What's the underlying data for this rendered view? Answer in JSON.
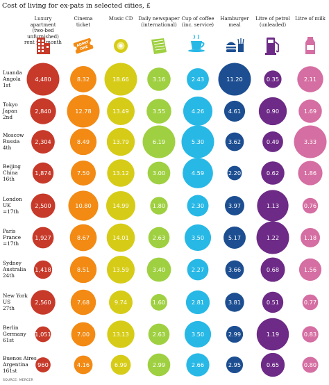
{
  "title": "Cost of living for ex-pats in selected cities, £",
  "source": "SOURCE: MERCER",
  "chart_data": {
    "type": "bubble",
    "title": "Cost of living for ex-pats in selected cities, £",
    "categories": [
      {
        "label": "Luxury apartment\n(two-bed unfurnished)\nrent per month",
        "color": "#c73a2a",
        "icon": "apartment-building-icon"
      },
      {
        "label": "Cinema\nticket",
        "color": "#f28a14",
        "icon": "admit-one-ticket-icon",
        "icon_text": "ADMIT\nONE"
      },
      {
        "label": "Music CD",
        "color": "#d6cc17",
        "icon": "compact-disc-icon"
      },
      {
        "label": "Daily newspaper\n(international)",
        "color": "#9fd041",
        "icon": "newspaper-icon"
      },
      {
        "label": "Cup of coffee\n(inc. service)",
        "color": "#27b8e6",
        "icon": "coffee-cup-icon"
      },
      {
        "label": "Hamburger\nmeal",
        "color": "#1c4e91",
        "icon": "hamburger-meal-icon"
      },
      {
        "label": "Litre of petrol\n(unleaded)",
        "color": "#6d2a86",
        "icon": "petrol-pump-icon"
      },
      {
        "label": "Litre of milk",
        "color": "#d56ea2",
        "icon": "milk-bottle-icon"
      }
    ],
    "cities": [
      {
        "label": "Luanda\nAngola\n1st",
        "values": [
          4480,
          8.32,
          18.66,
          3.16,
          2.43,
          11.2,
          0.35,
          2.11
        ],
        "display": [
          "4,480",
          "8.32",
          "18.66",
          "3.16",
          "2.43",
          "11.20",
          "0.35",
          "2.11"
        ]
      },
      {
        "label": "Tokyo\nJapan\n2nd",
        "values": [
          2840,
          12.78,
          13.49,
          3.55,
          4.26,
          4.61,
          0.9,
          1.69
        ],
        "display": [
          "2,840",
          "12.78",
          "13.49",
          "3.55",
          "4.26",
          "4.61",
          "0.90",
          "1.69"
        ]
      },
      {
        "label": "Moscow\nRussia\n4th",
        "values": [
          2304,
          8.49,
          13.79,
          6.19,
          5.3,
          3.62,
          0.49,
          3.33
        ],
        "display": [
          "2,304",
          "8.49",
          "13.79",
          "6.19",
          "5.30",
          "3.62",
          "0.49",
          "3.33"
        ]
      },
      {
        "label": "Beijing\nChina\n16th",
        "values": [
          1874,
          7.5,
          13.12,
          3.0,
          4.59,
          2.2,
          0.62,
          1.86
        ],
        "display": [
          "1,874",
          "7.50",
          "13.12",
          "3.00",
          "4.59",
          "2.20",
          "0.62",
          "1.86"
        ]
      },
      {
        "label": "London\nUK\n=17th",
        "values": [
          2500,
          10.8,
          14.99,
          1.8,
          2.3,
          3.97,
          1.13,
          0.76
        ],
        "display": [
          "2,500",
          "10.80",
          "14.99",
          "1.80",
          "2.30",
          "3.97",
          "1.13",
          "0.76"
        ]
      },
      {
        "label": "Paris\nFrance\n=17th",
        "values": [
          1927,
          8.67,
          14.01,
          2.63,
          3.5,
          5.17,
          1.22,
          1.18
        ],
        "display": [
          "1,927",
          "8.67",
          "14.01",
          "2.63",
          "3.50",
          "5.17",
          "1.22",
          "1.18"
        ]
      },
      {
        "label": "Sydney\nAustralia\n24th",
        "values": [
          1418,
          8.51,
          13.59,
          3.4,
          2.27,
          3.66,
          0.68,
          1.56
        ],
        "display": [
          "1,418",
          "8.51",
          "13.59",
          "3.40",
          "2.27",
          "3.66",
          "0.68",
          "1.56"
        ]
      },
      {
        "label": "New York\nUS\n27th",
        "values": [
          2560,
          7.68,
          9.74,
          1.6,
          2.81,
          3.81,
          0.51,
          0.77
        ],
        "display": [
          "2,560",
          "7.68",
          "9.74",
          "1.60",
          "2.81",
          "3.81",
          "0.51",
          "0.77"
        ]
      },
      {
        "label": "Berlin\nGermany\n61st",
        "values": [
          1051,
          7.0,
          13.13,
          2.63,
          3.5,
          2.99,
          1.19,
          0.83
        ],
        "display": [
          "1,051",
          "7.00",
          "13.13",
          "2.63",
          "3.50",
          "2.99",
          "1.19",
          "0.83"
        ]
      },
      {
        "label": "Buenos Aires\nArgentina\n161st",
        "values": [
          960,
          4.16,
          6.99,
          2.99,
          2.66,
          2.95,
          0.65,
          0.8
        ],
        "display": [
          "960",
          "4.16",
          "6.99",
          "2.99",
          "2.66",
          "2.95",
          "0.65",
          "0.80"
        ]
      }
    ]
  }
}
